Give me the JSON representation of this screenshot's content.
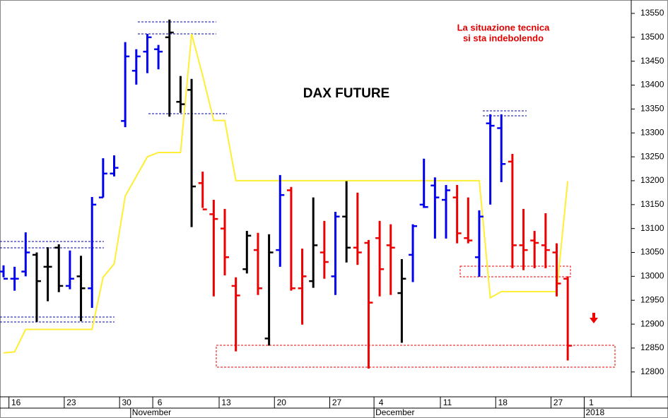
{
  "chart_data": {
    "type": "ohlc",
    "title": "DAX FUTURE",
    "annotations": [
      "La situazione tecnica",
      "si sta indebolendo"
    ],
    "categories": [
      null,
      "16",
      null,
      null,
      null,
      null,
      "23",
      null,
      null,
      null,
      null,
      "30",
      null,
      null,
      "6",
      null,
      null,
      null,
      null,
      null,
      "13",
      null,
      null,
      null,
      null,
      "20",
      null,
      null,
      null,
      null,
      "27",
      null,
      null,
      null,
      "4",
      null,
      null,
      null,
      null,
      null,
      "11",
      null,
      null,
      null,
      null,
      "18",
      null,
      null,
      null,
      null,
      "27",
      null,
      null,
      "1",
      null,
      null,
      null
    ],
    "months": [
      null,
      null,
      null,
      null,
      null,
      null,
      null,
      null,
      null,
      null,
      null,
      null,
      "November",
      null,
      null,
      null,
      null,
      null,
      null,
      null,
      null,
      null,
      null,
      null,
      null,
      null,
      null,
      null,
      null,
      null,
      null,
      null,
      null,
      null,
      "December",
      null,
      null,
      null,
      null,
      null,
      null,
      null,
      null,
      null,
      null,
      null,
      null,
      null,
      null,
      null,
      null,
      null,
      null,
      "2018",
      null,
      null,
      null
    ],
    "open": [
      13010,
      12995,
      13010,
      13045,
      13020,
      13060,
      12980,
      13000,
      12975,
      13165,
      13215,
      13325,
      13430,
      13470,
      13475,
      13500,
      13365,
      13390,
      13195,
      13130,
      13100,
      12980,
      13015,
      13055,
      12870,
      13055,
      13180,
      12975,
      12990,
      13050,
      13000,
      13125,
      13060,
      13070,
      13080,
      13065,
      12965,
      13045,
      13150,
      13190,
      13160,
      13165,
      13080,
      13040,
      13320,
      13310,
      13240,
      13065,
      13075,
      13065,
      13050,
      12995,
      null,
      null,
      null,
      null,
      null
    ],
    "high": [
      13023,
      13020,
      13092,
      13050,
      13061,
      13067,
      13054,
      13043,
      13166,
      13247,
      13253,
      13490,
      13475,
      13507,
      13484,
      13537,
      13419,
      13413,
      13219,
      13160,
      13141,
      12998,
      13095,
      13091,
      13088,
      13212,
      13187,
      13058,
      13165,
      13116,
      13135,
      13199,
      13175,
      13076,
      13116,
      13109,
      13036,
      13109,
      13246,
      13207,
      13191,
      13191,
      13165,
      13138,
      13339,
      13339,
      13256,
      13141,
      13095,
      13132,
      13069,
      13000,
      null,
      null,
      null,
      null,
      null
    ],
    "low": [
      12998,
      12970,
      13000,
      12905,
      12948,
      12967,
      12973,
      12906,
      12934,
      13165,
      13209,
      13312,
      13401,
      13425,
      13433,
      13334,
      13342,
      13103,
      13143,
      12958,
      13002,
      12843,
      13006,
      12961,
      12855,
      13020,
      12970,
      12899,
      12976,
      12995,
      12961,
      13029,
      13024,
      12807,
      12958,
      12961,
      12861,
      12988,
      13143,
      13079,
      13079,
      13069,
      13069,
      12999,
      13150,
      13197,
      13017,
      13013,
      13017,
      13017,
      12958,
      12824,
      null,
      null,
      null,
      null,
      null
    ],
    "close": [
      12995,
      12995,
      13050,
      12990,
      13020,
      12980,
      12995,
      12975,
      13150,
      13215,
      13227,
      13460,
      13460,
      13500,
      13470,
      13510,
      13360,
      13188,
      13140,
      13120,
      13040,
      12960,
      13085,
      12975,
      13050,
      13170,
      12975,
      13000,
      13065,
      13030,
      13125,
      13060,
      13050,
      12945,
      13015,
      13060,
      12995,
      13105,
      13145,
      13165,
      13180,
      13090,
      13075,
      13125,
      13315,
      13235,
      13065,
      13055,
      13070,
      13055,
      12985,
      12855,
      null,
      null,
      null,
      null,
      null
    ],
    "colors": [
      "#0000ee",
      "#0000ee",
      "#0000ee",
      "#000000",
      "#000000",
      "#000000",
      "#0000ee",
      "#000000",
      "#0000ee",
      "#0000ee",
      "#0000ee",
      "#0000ee",
      "#0000ee",
      "#0000ee",
      "#0000ee",
      "#000000",
      "#000000",
      "#000000",
      "#ee0000",
      "#ee0000",
      "#ee0000",
      "#ee0000",
      "#000000",
      "#ee0000",
      "#000000",
      "#0000ee",
      "#ee0000",
      "#ee0000",
      "#000000",
      "#ee0000",
      "#0000ee",
      "#000000",
      "#ee0000",
      "#ee0000",
      "#ee0000",
      "#ee0000",
      "#000000",
      "#0000ee",
      "#0000ee",
      "#0000ee",
      "#0000ee",
      "#ee0000",
      "#ee0000",
      "#0000ee",
      "#0000ee",
      "#0000ee",
      "#ee0000",
      "#ee0000",
      "#ee0000",
      "#ee0000",
      "#ee0000",
      "#ee0000",
      null,
      null,
      null,
      null,
      null
    ],
    "overlay": {
      "color": "#ffee33",
      "values": [
        12840,
        12842,
        12889,
        12889,
        12889,
        12889,
        12889,
        12889,
        12889,
        12998,
        13026,
        13168,
        13209,
        13250,
        13259,
        13259,
        13259,
        13507,
        13420,
        13326,
        13326,
        13200,
        13200,
        13200,
        13200,
        13200,
        13200,
        13200,
        13200,
        13200,
        13200,
        13200,
        13200,
        13200,
        13200,
        13200,
        13200,
        13200,
        13200,
        13200,
        13200,
        13200,
        13200,
        13200,
        12955,
        12968,
        12968,
        12968,
        12968,
        12968,
        12968,
        13199,
        null,
        null,
        null,
        null,
        null
      ]
    },
    "ylim": [
      12748,
      13578
    ],
    "yticks": [
      12800,
      12850,
      12900,
      12950,
      13000,
      13050,
      13100,
      13150,
      13200,
      13250,
      13300,
      13350,
      13400,
      13450,
      13500,
      13550
    ]
  }
}
